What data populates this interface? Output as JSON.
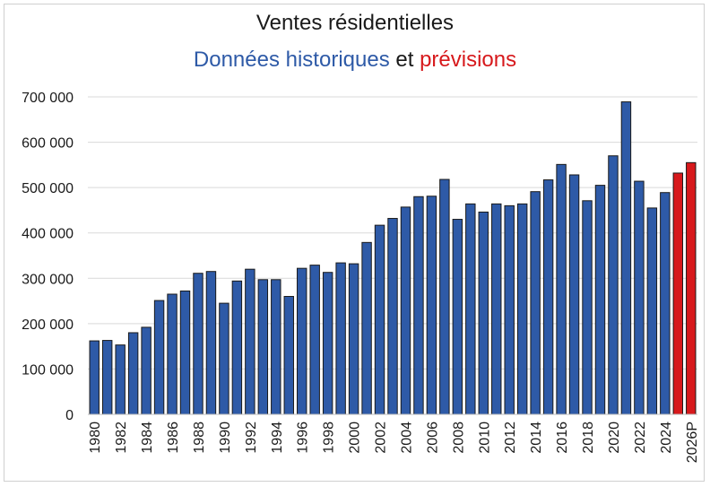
{
  "chart_data": {
    "type": "bar",
    "title": "Ventes résidentielles",
    "subtitle": {
      "historical": "Données historiques",
      "connector": "et",
      "forecast": "prévisions"
    },
    "xlabel": "",
    "ylabel": "",
    "ylim": [
      0,
      700000
    ],
    "yticks": [
      0,
      100000,
      200000,
      300000,
      400000,
      500000,
      600000,
      700000
    ],
    "ytick_labels": [
      "0",
      "100 000",
      "200 000",
      "300 000",
      "400 000",
      "500 000",
      "600 000",
      "700 000"
    ],
    "grid": true,
    "colors": {
      "historical": "#2e5aa7",
      "forecast": "#d7191c",
      "bar_edge": "#1a1a1a",
      "grid": "#d9d9d9"
    },
    "categories": [
      "1980",
      "1981",
      "1982",
      "1983",
      "1984",
      "1985",
      "1986",
      "1987",
      "1988",
      "1989",
      "1990",
      "1991",
      "1992",
      "1993",
      "1994",
      "1995",
      "1996",
      "1997",
      "1998",
      "1999",
      "2000",
      "2001",
      "2002",
      "2003",
      "2004",
      "2005",
      "2006",
      "2007",
      "2008",
      "2009",
      "2010",
      "2011",
      "2012",
      "2013",
      "2014",
      "2015",
      "2016",
      "2017",
      "2018",
      "2019",
      "2020",
      "2021",
      "2022",
      "2023",
      "2024",
      "2025",
      "2026P"
    ],
    "xtick_labels": [
      "1980",
      "1982",
      "1984",
      "1986",
      "1988",
      "1990",
      "1992",
      "1994",
      "1996",
      "1998",
      "2000",
      "2002",
      "2004",
      "2006",
      "2008",
      "2010",
      "2012",
      "2014",
      "2016",
      "2018",
      "2020",
      "2022",
      "2024",
      "2026P"
    ],
    "values": [
      162000,
      163000,
      153000,
      180000,
      192000,
      251000,
      265000,
      272000,
      311000,
      315000,
      245000,
      294000,
      320000,
      297000,
      297000,
      260000,
      322000,
      329000,
      313000,
      334000,
      332000,
      379000,
      417000,
      432000,
      457000,
      480000,
      481000,
      518000,
      430000,
      464000,
      446000,
      464000,
      460000,
      464000,
      491000,
      517000,
      551000,
      528000,
      471000,
      505000,
      570000,
      689000,
      514000,
      455000,
      489000,
      532000,
      555000
    ],
    "is_forecast": [
      false,
      false,
      false,
      false,
      false,
      false,
      false,
      false,
      false,
      false,
      false,
      false,
      false,
      false,
      false,
      false,
      false,
      false,
      false,
      false,
      false,
      false,
      false,
      false,
      false,
      false,
      false,
      false,
      false,
      false,
      false,
      false,
      false,
      false,
      false,
      false,
      false,
      false,
      false,
      false,
      false,
      false,
      false,
      false,
      false,
      true,
      true
    ]
  }
}
